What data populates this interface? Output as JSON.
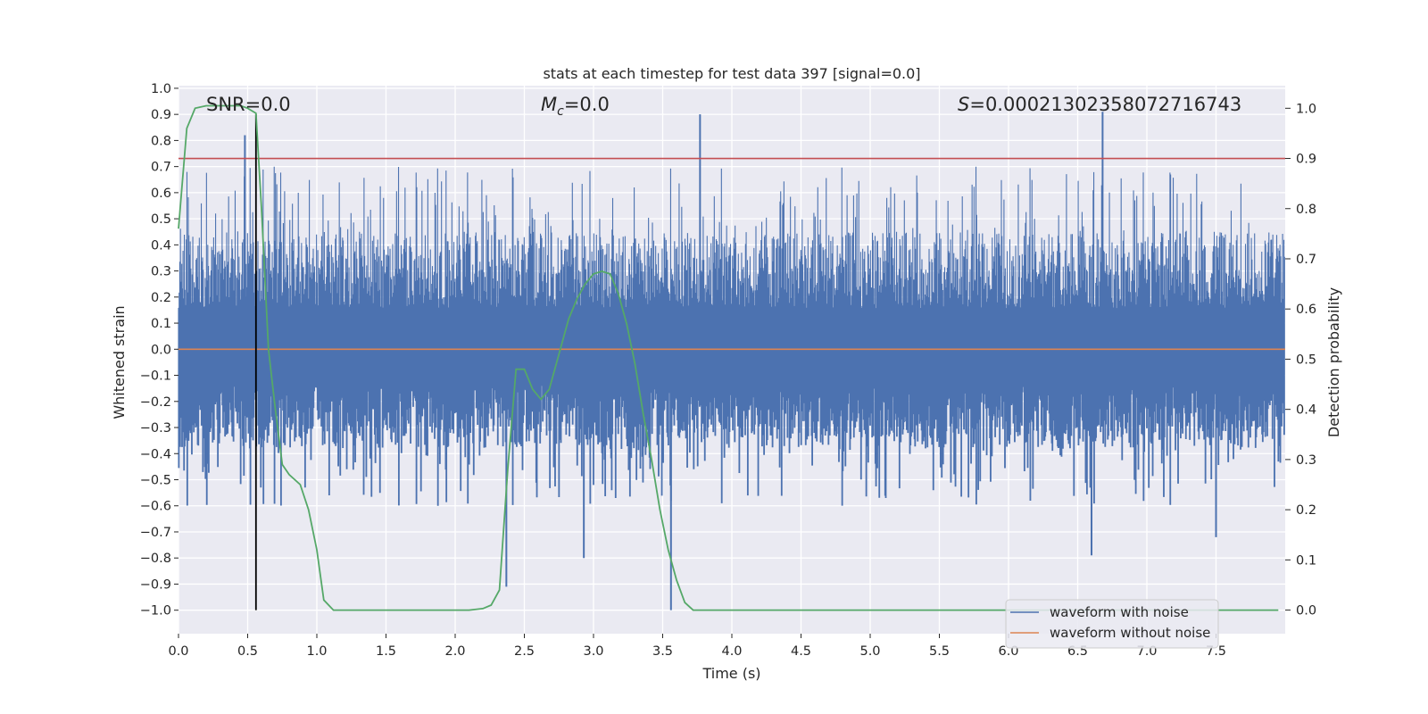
{
  "chart_data": {
    "type": "line",
    "title": "stats at each timestep for test data 397 [signal=0.0]",
    "xlabel": "Time (s)",
    "ylabel_left": "Whitened strain",
    "ylabel_right": "Detection probability",
    "xlim": [
      0.0,
      8.0
    ],
    "ylim_left": [
      -1.09,
      1.01
    ],
    "ylim_right": [
      -0.047,
      1.045
    ],
    "grid": true,
    "x_ticks": [
      "0.0",
      "0.5",
      "1.0",
      "1.5",
      "2.0",
      "2.5",
      "3.0",
      "3.5",
      "4.0",
      "4.5",
      "5.0",
      "5.5",
      "6.0",
      "6.5",
      "7.0",
      "7.5"
    ],
    "x_tick_values": [
      0.0,
      0.5,
      1.0,
      1.5,
      2.0,
      2.5,
      3.0,
      3.5,
      4.0,
      4.5,
      5.0,
      5.5,
      6.0,
      6.5,
      7.0,
      7.5
    ],
    "y_left_ticks": [
      "1.0",
      "0.9",
      "0.8",
      "0.7",
      "0.6",
      "0.5",
      "0.4",
      "0.3",
      "0.2",
      "0.1",
      "0.0",
      "−0.1",
      "−0.2",
      "−0.3",
      "−0.4",
      "−0.5",
      "−0.6",
      "−0.7",
      "−0.8",
      "−0.9",
      "−1.0"
    ],
    "y_left_tick_values": [
      1.0,
      0.9,
      0.8,
      0.7,
      0.6,
      0.5,
      0.4,
      0.3,
      0.2,
      0.1,
      0.0,
      -0.1,
      -0.2,
      -0.3,
      -0.4,
      -0.5,
      -0.6,
      -0.7,
      -0.8,
      -0.9,
      -1.0
    ],
    "y_right_ticks": [
      "1.0",
      "0.9",
      "0.8",
      "0.7",
      "0.6",
      "0.5",
      "0.4",
      "0.3",
      "0.2",
      "0.1",
      "0.0"
    ],
    "y_right_tick_values": [
      1.0,
      0.9,
      0.8,
      0.7,
      0.6,
      0.5,
      0.4,
      0.3,
      0.2,
      0.1,
      0.0
    ],
    "annotations": {
      "snr": "SNR=0.0",
      "mc_symbol": "M",
      "mc_sub": "c",
      "mc_value": "=0.0",
      "s_symbol": "S",
      "s_value": "=0.00021302358072716743"
    },
    "threshold_right": 0.9,
    "marker_time": 0.56,
    "marker_range_left": [
      -1.0,
      0.9
    ],
    "noise_envelope": {
      "upper_typical": 0.45,
      "upper_peak": 0.7,
      "lower_typical": -0.38,
      "lower_peak": -0.6,
      "spikes": [
        {
          "t": 0.48,
          "v": 0.82
        },
        {
          "t": 3.77,
          "v": 0.9
        },
        {
          "t": 6.68,
          "v": 0.91
        },
        {
          "t": 2.37,
          "v": -0.91
        },
        {
          "t": 2.93,
          "v": -0.8
        },
        {
          "t": 3.56,
          "v": -1.0
        },
        {
          "t": 6.6,
          "v": -0.79
        },
        {
          "t": 7.5,
          "v": -0.72
        }
      ]
    },
    "detection_probability": {
      "x": [
        0.0,
        0.06,
        0.12,
        0.2,
        0.32,
        0.45,
        0.5,
        0.56,
        0.6,
        0.65,
        0.7,
        0.75,
        0.8,
        0.88,
        0.94,
        1.0,
        1.05,
        1.12,
        1.2,
        1.4,
        1.6,
        1.8,
        2.0,
        2.1,
        2.2,
        2.26,
        2.32,
        2.38,
        2.44,
        2.5,
        2.56,
        2.62,
        2.68,
        2.75,
        2.82,
        2.88,
        2.94,
        3.0,
        3.06,
        3.12,
        3.18,
        3.24,
        3.3,
        3.36,
        3.42,
        3.48,
        3.54,
        3.6,
        3.66,
        3.72,
        3.8,
        4.0,
        5.0,
        6.0,
        7.0,
        7.95
      ],
      "y": [
        0.76,
        0.96,
        1.0,
        1.005,
        1.005,
        1.005,
        1.0,
        0.99,
        0.8,
        0.52,
        0.4,
        0.29,
        0.27,
        0.25,
        0.2,
        0.12,
        0.02,
        0.0,
        0.0,
        0.0,
        0.0,
        0.0,
        0.0,
        0.0,
        0.003,
        0.01,
        0.04,
        0.28,
        0.48,
        0.48,
        0.44,
        0.42,
        0.44,
        0.51,
        0.58,
        0.62,
        0.65,
        0.67,
        0.675,
        0.67,
        0.63,
        0.57,
        0.49,
        0.39,
        0.3,
        0.2,
        0.12,
        0.06,
        0.015,
        0.0,
        0.0,
        0.0,
        0.0,
        0.0,
        0.0,
        0.0
      ]
    },
    "series": [
      {
        "name": "waveform with noise",
        "color": "#4c72b0"
      },
      {
        "name": "waveform without noise",
        "color": "#dd8452"
      },
      {
        "name": "detection probability",
        "color": "#55a868"
      },
      {
        "name": "threshold",
        "color": "#c44e52"
      },
      {
        "name": "marker",
        "color": "#000000"
      }
    ],
    "legend": {
      "placement": "bottom-right",
      "entries": [
        "waveform with noise",
        "waveform without noise"
      ]
    }
  }
}
